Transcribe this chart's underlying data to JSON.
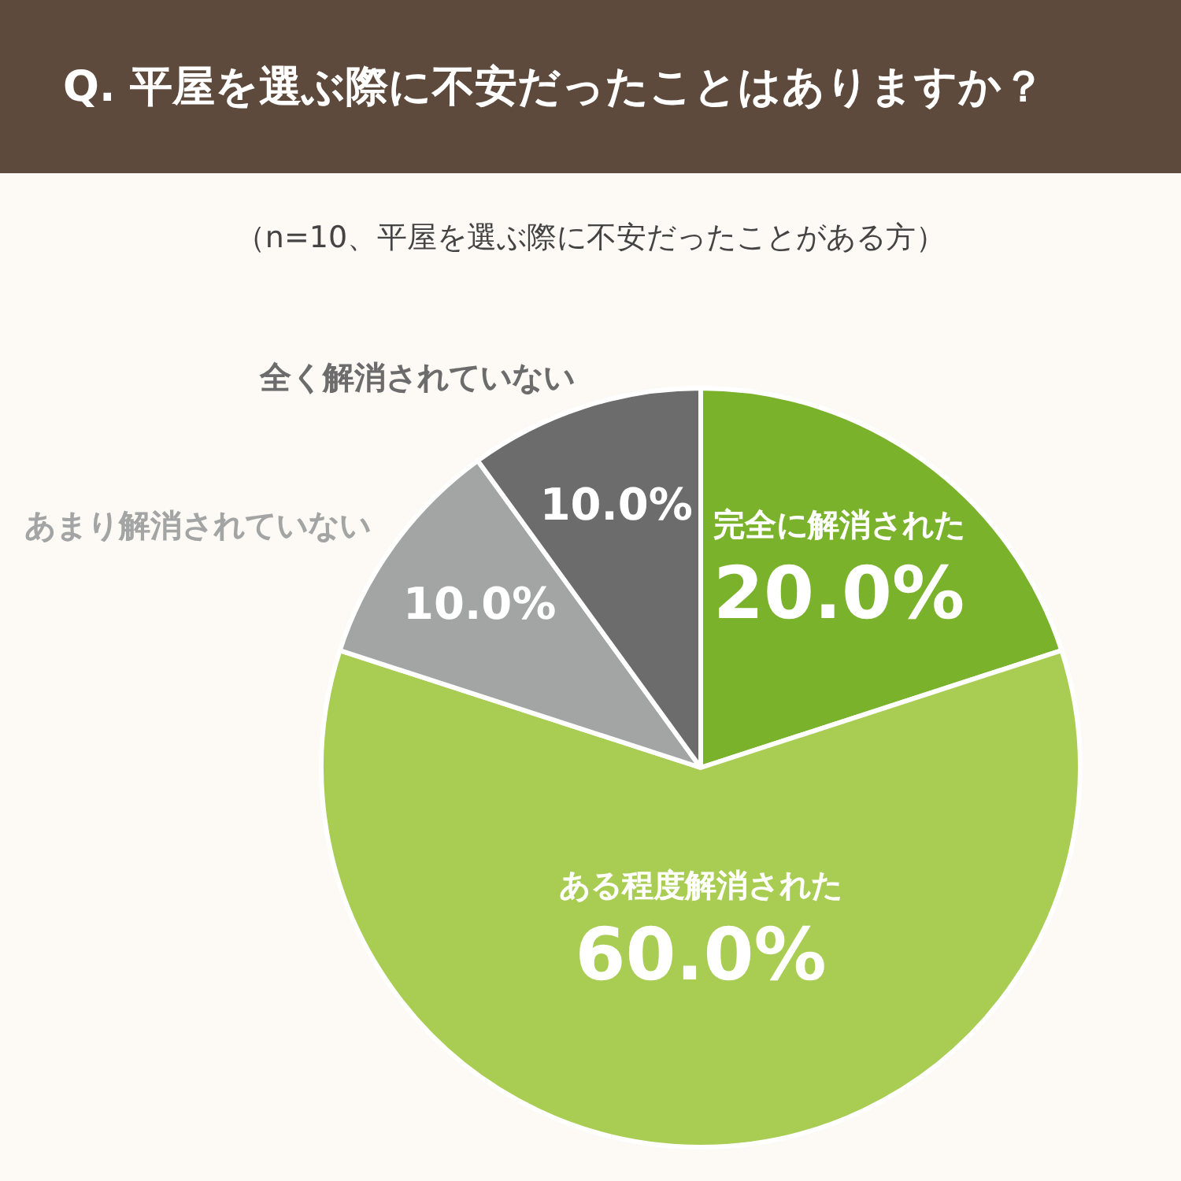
{
  "chart_data": {
    "type": "pie",
    "title": "Q. 平屋を選ぶ際に不安だったことはありますか？",
    "subtitle": "（n=10、平屋を選ぶ際に不安だったことがある方）",
    "categories": [
      "完全に解消された",
      "ある程度解消された",
      "あまり解消されていない",
      "全く解消されていない"
    ],
    "values": [
      20,
      60,
      10,
      10
    ],
    "value_labels": [
      "20.0%",
      "60.0%",
      "10.0%",
      "10.0%"
    ],
    "colors": [
      "#7bb22c",
      "#a8cd52",
      "#a3a4a4",
      "#6c6c6c"
    ],
    "legend": false
  }
}
